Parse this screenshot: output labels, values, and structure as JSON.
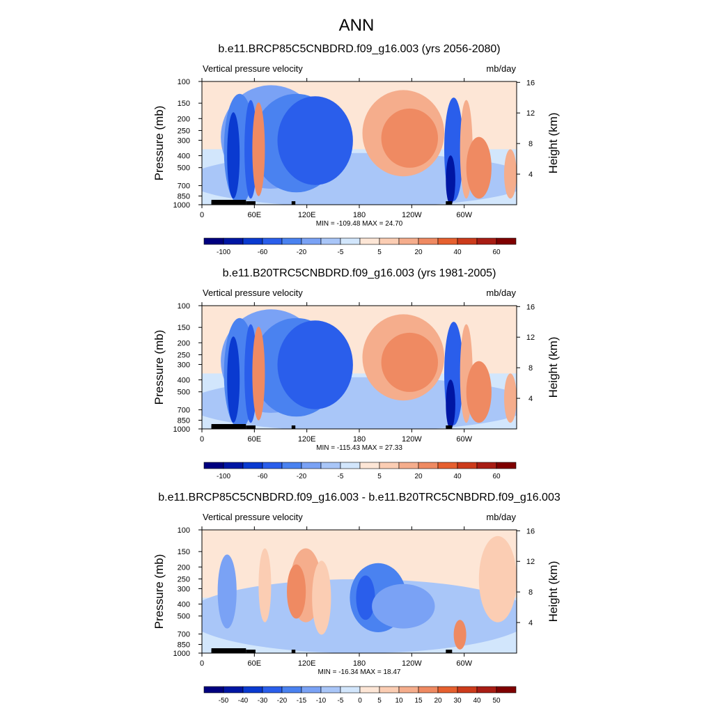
{
  "figure_title": "ANN",
  "colors": {
    "abs_palette": [
      "#00007f",
      "#0016a3",
      "#0a3ad0",
      "#2a5eeb",
      "#4a82f0",
      "#7aa2f5",
      "#a9c6f8",
      "#d2e6fc",
      "#fde6d6",
      "#fbcdb3",
      "#f5ad8c",
      "#ef8a62",
      "#e6602f",
      "#cc3b1b",
      "#a81d14",
      "#7f0000"
    ],
    "diff_palette": [
      "#00007f",
      "#0016a3",
      "#0a3ad0",
      "#2a5eeb",
      "#4a82f0",
      "#7aa2f5",
      "#a9c6f8",
      "#d2e6fc",
      "#fde6d6",
      "#fbcdb3",
      "#f5ad8c",
      "#ef8a62",
      "#e6602f",
      "#cc3b1b",
      "#a81d14",
      "#7f0000"
    ],
    "topography": "#000000"
  },
  "chart_data": [
    {
      "type": "heatmap",
      "title": "b.e11.BRCP85C5CNBDRD.f09_g16.003 (yrs 2056-2080)",
      "left_label": "Vertical pressure velocity",
      "right_label": "mb/day",
      "ylabel": "Pressure (mb)",
      "y2label": "Height (km)",
      "x_ticks": [
        "0",
        "60E",
        "120E",
        "180",
        "120W",
        "60W"
      ],
      "x_tick_values": [
        0,
        60,
        120,
        180,
        240,
        300
      ],
      "xlim": [
        0,
        360
      ],
      "y_ticks": [
        "100",
        "150",
        "200",
        "250",
        "300",
        "400",
        "500",
        "700",
        "850",
        "1000"
      ],
      "y_tick_values": [
        100,
        150,
        200,
        250,
        300,
        400,
        500,
        700,
        850,
        1000
      ],
      "ylim": [
        1000,
        100
      ],
      "y2_ticks": [
        "4",
        "8",
        "12",
        "16"
      ],
      "stats": "MIN = -109.48  MAX =  24.70",
      "colorbar_labels": [
        "-100",
        "-60",
        "-20",
        "-5",
        "5",
        "20",
        "40",
        "60"
      ],
      "min": -109.48,
      "max": 24.7
    },
    {
      "type": "heatmap",
      "title": "b.e11.B20TRC5CNBDRD.f09_g16.003 (yrs 1981-2005)",
      "left_label": "Vertical pressure velocity",
      "right_label": "mb/day",
      "ylabel": "Pressure (mb)",
      "y2label": "Height (km)",
      "x_ticks": [
        "0",
        "60E",
        "120E",
        "180",
        "120W",
        "60W"
      ],
      "x_tick_values": [
        0,
        60,
        120,
        180,
        240,
        300
      ],
      "xlim": [
        0,
        360
      ],
      "y_ticks": [
        "100",
        "150",
        "200",
        "250",
        "300",
        "400",
        "500",
        "700",
        "850",
        "1000"
      ],
      "y_tick_values": [
        100,
        150,
        200,
        250,
        300,
        400,
        500,
        700,
        850,
        1000
      ],
      "ylim": [
        1000,
        100
      ],
      "y2_ticks": [
        "4",
        "8",
        "12",
        "16"
      ],
      "stats": "MIN = -115.43  MAX =  27.33",
      "colorbar_labels": [
        "-100",
        "-60",
        "-20",
        "-5",
        "5",
        "20",
        "40",
        "60"
      ],
      "min": -115.43,
      "max": 27.33
    },
    {
      "type": "heatmap",
      "title": "b.e11.BRCP85C5CNBDRD.f09_g16.003 - b.e11.B20TRC5CNBDRD.f09_g16.003",
      "left_label": "Vertical pressure velocity",
      "right_label": "mb/day",
      "ylabel": "Pressure (mb)",
      "y2label": "Height (km)",
      "x_ticks": [
        "0",
        "60E",
        "120E",
        "180",
        "120W",
        "60W"
      ],
      "x_tick_values": [
        0,
        60,
        120,
        180,
        240,
        300
      ],
      "xlim": [
        0,
        360
      ],
      "y_ticks": [
        "100",
        "150",
        "200",
        "250",
        "300",
        "400",
        "500",
        "700",
        "850",
        "1000"
      ],
      "y_tick_values": [
        100,
        150,
        200,
        250,
        300,
        400,
        500,
        700,
        850,
        1000
      ],
      "ylim": [
        1000,
        100
      ],
      "y2_ticks": [
        "4",
        "8",
        "12",
        "16"
      ],
      "stats": "MIN = -16.34  MAX =  18.47",
      "colorbar_labels": [
        "-50",
        "-40",
        "-30",
        "-20",
        "-15",
        "-10",
        "-5",
        "0",
        "5",
        "10",
        "15",
        "20",
        "30",
        "40",
        "50"
      ],
      "min": -16.34,
      "max": 18.47
    }
  ]
}
